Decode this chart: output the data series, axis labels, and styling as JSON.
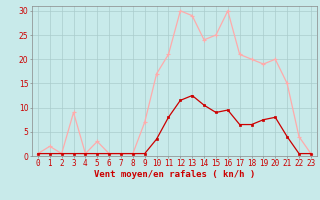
{
  "x": [
    0,
    1,
    2,
    3,
    4,
    5,
    6,
    7,
    8,
    9,
    10,
    11,
    12,
    13,
    14,
    15,
    16,
    17,
    18,
    19,
    20,
    21,
    22,
    23
  ],
  "rafales": [
    0.5,
    2,
    0.5,
    9,
    0.5,
    3,
    0.5,
    0.5,
    0.5,
    7,
    17,
    21,
    30,
    29,
    24,
    25,
    30,
    21,
    20,
    19,
    20,
    15,
    4,
    0.5
  ],
  "moyen": [
    0.5,
    0.5,
    0.5,
    0.5,
    0.5,
    0.5,
    0.5,
    0.5,
    0.5,
    0.5,
    3.5,
    8,
    11.5,
    12.5,
    10.5,
    9,
    9.5,
    6.5,
    6.5,
    7.5,
    8,
    4,
    0.5,
    0.5
  ],
  "color_rafales": "#ffaaaa",
  "color_moyen": "#cc0000",
  "bg_color": "#c8eaea",
  "grid_color": "#aacccc",
  "xlabel": "Vent moyen/en rafales ( kn/h )",
  "ylabel_ticks": [
    0,
    5,
    10,
    15,
    20,
    25,
    30
  ],
  "xlim": [
    -0.5,
    23.5
  ],
  "ylim": [
    0,
    31
  ],
  "xlabel_fontsize": 6.5,
  "tick_fontsize": 5.5
}
